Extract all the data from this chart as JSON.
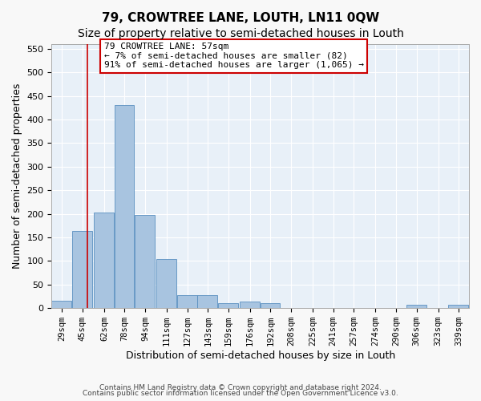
{
  "title": "79, CROWTREE LANE, LOUTH, LN11 0QW",
  "subtitle": "Size of property relative to semi-detached houses in Louth",
  "xlabel": "Distribution of semi-detached houses by size in Louth",
  "ylabel": "Number of semi-detached properties",
  "bar_edges": [
    29,
    45,
    62,
    78,
    94,
    111,
    127,
    143,
    159,
    176,
    192,
    208,
    225,
    241,
    257,
    274,
    290,
    306,
    323,
    339,
    355
  ],
  "bar_heights": [
    16,
    163,
    203,
    430,
    197,
    104,
    27,
    27,
    10,
    14,
    10,
    0,
    0,
    0,
    0,
    0,
    0,
    8,
    0,
    8
  ],
  "bar_color": "#a8c4e0",
  "bar_edge_color": "#5a8fc0",
  "vline_x": 57,
  "vline_color": "#cc0000",
  "annotation_text": "79 CROWTREE LANE: 57sqm\n← 7% of semi-detached houses are smaller (82)\n91% of semi-detached houses are larger (1,065) →",
  "annotation_box_color": "#ffffff",
  "annotation_box_edge_color": "#cc0000",
  "ylim": [
    0,
    560
  ],
  "yticks": [
    0,
    50,
    100,
    150,
    200,
    250,
    300,
    350,
    400,
    450,
    500,
    550
  ],
  "footer_line1": "Contains HM Land Registry data © Crown copyright and database right 2024.",
  "footer_line2": "Contains public sector information licensed under the Open Government Licence v3.0.",
  "background_color": "#e8f0f8",
  "plot_bg_color": "#e8f0f8",
  "title_fontsize": 11,
  "subtitle_fontsize": 10,
  "tick_label_fontsize": 7.5,
  "ylabel_fontsize": 9,
  "xlabel_fontsize": 9
}
